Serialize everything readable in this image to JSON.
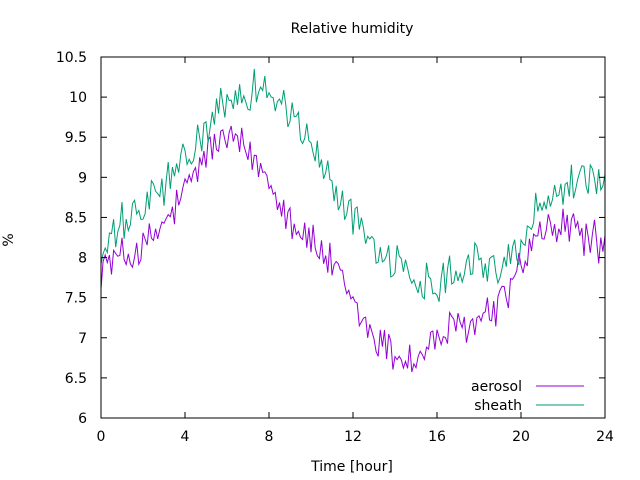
{
  "chart_data": {
    "type": "line",
    "title": "Relative humidity",
    "xlabel": "Time [hour]",
    "ylabel": "%",
    "xlim": [
      0,
      24
    ],
    "ylim": [
      6,
      10.5
    ],
    "xticks": [
      0,
      4,
      8,
      12,
      16,
      20,
      24
    ],
    "yticks": [
      6,
      6.5,
      7,
      7.5,
      8,
      8.5,
      9,
      9.5,
      10,
      10.5
    ],
    "grid": false,
    "legend_position": "bottom-right",
    "x_sample_interval_hours": 0.1,
    "series": [
      {
        "name": "aerosol",
        "color": "#9400d3",
        "trend_x": [
          0,
          1,
          2,
          3,
          4,
          5,
          6,
          7,
          8,
          9,
          10,
          11,
          12,
          13,
          14,
          15,
          16,
          17,
          18,
          19,
          20,
          21,
          22,
          23,
          24
        ],
        "trend_y": [
          7.9,
          8.0,
          8.1,
          8.4,
          8.8,
          9.3,
          9.5,
          9.3,
          9.0,
          8.5,
          8.2,
          7.9,
          7.4,
          7.0,
          6.8,
          6.7,
          7.0,
          7.1,
          7.2,
          7.4,
          7.9,
          8.3,
          8.4,
          8.3,
          8.1
        ],
        "noise": 0.22
      },
      {
        "name": "sheath",
        "color": "#009e73",
        "trend_x": [
          0,
          1,
          2,
          3,
          4,
          5,
          6,
          7,
          8,
          9,
          10,
          11,
          12,
          13,
          14,
          15,
          16,
          17,
          18,
          19,
          20,
          21,
          22,
          23,
          24
        ],
        "trend_y": [
          8.0,
          8.4,
          8.6,
          8.9,
          9.2,
          9.6,
          9.9,
          10.1,
          10.1,
          9.8,
          9.4,
          8.9,
          8.5,
          8.2,
          7.9,
          7.7,
          7.7,
          7.9,
          8.0,
          7.8,
          8.2,
          8.7,
          8.9,
          9.0,
          9.0
        ],
        "noise": 0.22
      }
    ]
  }
}
